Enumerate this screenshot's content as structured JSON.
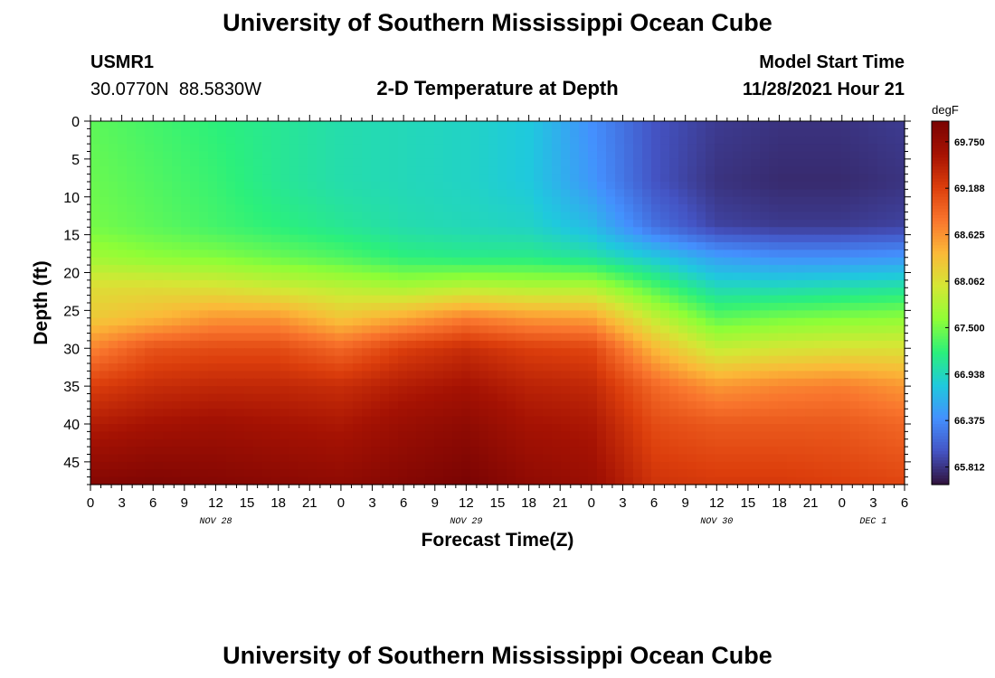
{
  "header": {
    "title": "University of Southern Mississippi Ocean Cube",
    "station": "USMR1",
    "coords": "30.0770N  88.5830W",
    "subtitle": "2-D Temperature at Depth",
    "model_label": "Model Start Time",
    "model_time": "11/28/2021 Hour 21"
  },
  "footer": {
    "title": "University of Southern Mississippi Ocean Cube"
  },
  "chart_data": {
    "type": "heatmap",
    "title": "2-D Temperature at Depth",
    "xlabel": "Forecast Time(Z)",
    "ylabel": "Depth (ft)",
    "colorbar_unit": "degF",
    "colorbar_ticks": [
      "69.750",
      "69.188",
      "68.625",
      "68.062",
      "67.500",
      "66.938",
      "66.375",
      "65.812"
    ],
    "colorbar_ticks_values": [
      69.75,
      69.188,
      68.625,
      68.062,
      67.5,
      66.938,
      66.375,
      65.812
    ],
    "vrange": [
      65.6,
      70.0
    ],
    "colors": [
      "#30123b",
      "#4454c4",
      "#4490fe",
      "#1fc9dd",
      "#2bf07b",
      "#8ffe36",
      "#d4e735",
      "#fbb938",
      "#f9752d",
      "#dc3e0c",
      "#a51203",
      "#7a0403"
    ],
    "x_ticks": [
      "0",
      "3",
      "6",
      "9",
      "12",
      "15",
      "18",
      "21",
      "0",
      "3",
      "6",
      "9",
      "12",
      "15",
      "18",
      "21",
      "0",
      "3",
      "6",
      "9",
      "12",
      "15",
      "18",
      "21",
      "0",
      "3",
      "6"
    ],
    "x_day_labels": [
      {
        "label": "NOV 28",
        "hour": 12
      },
      {
        "label": "NOV 29",
        "hour": 36
      },
      {
        "label": "NOV 30",
        "hour": 60
      },
      {
        "label": "DEC 1",
        "hour": 75
      }
    ],
    "x_range_hours": [
      0,
      78
    ],
    "y_ticks": [
      0,
      5,
      10,
      15,
      20,
      25,
      30,
      35,
      40,
      45
    ],
    "y_range_ft": [
      0,
      48
    ],
    "depths_ft": [
      0,
      8,
      14,
      18,
      22,
      26,
      30,
      35,
      40,
      48
    ],
    "time_hours": [
      0,
      6,
      12,
      18,
      24,
      30,
      36,
      42,
      48,
      54,
      60,
      66,
      72,
      78
    ],
    "temperature_degF": [
      [
        67.4,
        67.3,
        67.2,
        67.1,
        67.0,
        66.95,
        66.9,
        66.8,
        66.4,
        66.0,
        65.85,
        65.8,
        65.8,
        65.85
      ],
      [
        67.45,
        67.35,
        67.25,
        67.1,
        67.0,
        66.95,
        66.9,
        66.8,
        66.45,
        66.0,
        65.8,
        65.75,
        65.75,
        65.8
      ],
      [
        67.5,
        67.4,
        67.3,
        67.2,
        67.1,
        67.0,
        66.95,
        66.9,
        66.7,
        66.2,
        65.9,
        65.85,
        65.85,
        65.9
      ],
      [
        67.7,
        67.6,
        67.55,
        67.45,
        67.35,
        67.2,
        67.15,
        67.15,
        67.05,
        66.8,
        66.5,
        66.4,
        66.4,
        66.45
      ],
      [
        68.1,
        68.1,
        68.05,
        67.95,
        67.85,
        67.75,
        67.85,
        67.8,
        67.8,
        67.35,
        66.95,
        66.95,
        67.0,
        67.05
      ],
      [
        68.25,
        68.4,
        68.6,
        68.6,
        68.3,
        68.5,
        68.75,
        68.6,
        68.55,
        67.9,
        67.4,
        67.5,
        67.55,
        67.6
      ],
      [
        68.7,
        69.05,
        69.1,
        69.1,
        68.9,
        69.2,
        69.35,
        69.2,
        69.15,
        68.4,
        67.9,
        68.0,
        68.05,
        68.05
      ],
      [
        69.2,
        69.35,
        69.4,
        69.4,
        69.35,
        69.5,
        69.6,
        69.45,
        69.4,
        68.9,
        68.6,
        68.7,
        68.75,
        68.6
      ],
      [
        69.5,
        69.6,
        69.65,
        69.6,
        69.55,
        69.7,
        69.8,
        69.6,
        69.55,
        69.1,
        69.0,
        69.0,
        69.0,
        68.9
      ],
      [
        69.9,
        69.95,
        69.9,
        69.85,
        69.8,
        69.9,
        70.0,
        69.8,
        69.7,
        69.3,
        69.25,
        69.25,
        69.2,
        69.15
      ]
    ]
  }
}
